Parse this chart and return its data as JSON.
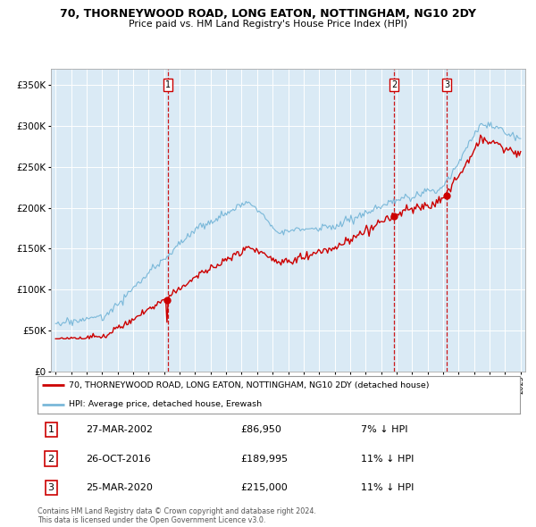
{
  "title": "70, THORNEYWOOD ROAD, LONG EATON, NOTTINGHAM, NG10 2DY",
  "subtitle": "Price paid vs. HM Land Registry's House Price Index (HPI)",
  "hpi_label": "HPI: Average price, detached house, Erewash",
  "property_label": "70, THORNEYWOOD ROAD, LONG EATON, NOTTINGHAM, NG10 2DY (detached house)",
  "hpi_color": "#7ab8d9",
  "property_color": "#cc0000",
  "bg_color": "#daeaf5",
  "grid_color": "#ffffff",
  "sale_year_floats": [
    2002.24,
    2016.83,
    2020.24
  ],
  "sale_prices": [
    86950,
    189995,
    215000
  ],
  "sale_labels": [
    "1",
    "2",
    "3"
  ],
  "sale_hpi_pct": [
    "7% ↓ HPI",
    "11% ↓ HPI",
    "11% ↓ HPI"
  ],
  "sale_date_strs": [
    "27-MAR-2002",
    "26-OCT-2016",
    "25-MAR-2020"
  ],
  "sale_price_strs": [
    "£86,950",
    "£189,995",
    "£215,000"
  ],
  "vline_color": "#cc0000",
  "marker_color": "#cc0000",
  "ylim": [
    0,
    370000
  ],
  "yticks": [
    0,
    50000,
    100000,
    150000,
    200000,
    250000,
    300000,
    350000
  ],
  "footer_text": "Contains HM Land Registry data © Crown copyright and database right 2024.\nThis data is licensed under the Open Government Licence v3.0.",
  "x_start_year": 1995,
  "x_end_year": 2025
}
